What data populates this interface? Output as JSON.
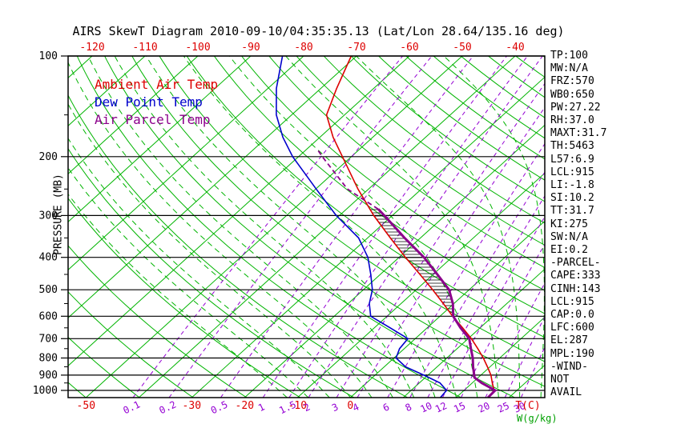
{
  "title": "AIRS SkewT Diagram 2010-09-10/04:35:35.13 (Lat/Lon 28.64/135.16 deg)",
  "colors": {
    "temp_axis": "#dd0000",
    "pressure_axis": "#000000",
    "mixing_axis": "#9400d3",
    "gkg_label": "#00a000",
    "title": "#000000"
  },
  "legend": [
    {
      "label": "Ambient Air Temp",
      "color": "#dd0000"
    },
    {
      "label": "Dew Point Temp",
      "color": "#0000cc"
    },
    {
      "label": "Air Parcel Temp",
      "color": "#8b008b"
    }
  ],
  "axes": {
    "pressure_label": "PRESSURE (MB)",
    "pressure_ticks": [
      100,
      200,
      300,
      400,
      500,
      600,
      700,
      800,
      900,
      1000
    ],
    "pressure_minor_ticks": [
      150,
      250,
      350,
      450,
      550,
      650,
      750,
      850,
      950
    ],
    "top_temp_ticks": [
      -120,
      -110,
      -100,
      -90,
      -80,
      -70,
      -60,
      -50,
      -40
    ],
    "bottom_temp_ticks": [
      -50,
      -30,
      -20,
      -10,
      0
    ],
    "temp_unit_label": "T(C)",
    "mixing_ratio_ticks": [
      0.1,
      0.2,
      0.5,
      1,
      1.5,
      2,
      3,
      4,
      6,
      8,
      10,
      12,
      15,
      20,
      25,
      30
    ],
    "mixing_unit_label": "W(g/kg)"
  },
  "stats_panel": [
    "TP:100",
    "MW:N/A",
    "FRZ:570",
    "WB0:650",
    "PW:27.22",
    "RH:37.0",
    "MAXT:31.7",
    "TH:5463",
    "L57:6.9",
    "LCL:915",
    "LI:-1.8",
    "SI:10.2",
    "TT:31.7",
    "KI:275",
    "SW:N/A",
    "EI:0.2",
    "-PARCEL-",
    "CAPE:333",
    "CINH:143",
    "LCL:915",
    "CAP:0.0",
    "LFC:600",
    "EL:287",
    "MPL:190",
    "-WIND-",
    "NOT",
    "AVAIL"
  ],
  "chart_data": {
    "type": "line",
    "title": "AIRS SkewT Diagram 2010-09-10/04:35:35.13 (Lat/Lon 28.64/135.16 deg)",
    "x_axis_label": "T(C)",
    "y_axis_label": "PRESSURE (MB)",
    "y_scale": "log",
    "ylim": [
      100,
      1050
    ],
    "skew": "45deg isotherms, log-pressure vertical axis",
    "series": [
      {
        "name": "Ambient Air Temp",
        "color": "#dd0000",
        "width": 1.6,
        "pressure": [
          1050,
          1000,
          950,
          900,
          850,
          800,
          750,
          700,
          650,
          600,
          550,
          500,
          450,
          400,
          350,
          300,
          250,
          200,
          175,
          150,
          125,
          100
        ],
        "temp_c": [
          26.0,
          25.7,
          23.8,
          21.9,
          19.5,
          16.9,
          13.9,
          10.6,
          6.7,
          2.4,
          -2.0,
          -6.9,
          -12.5,
          -18.8,
          -25.7,
          -33.5,
          -42.0,
          -51.7,
          -57.5,
          -63.4,
          -67.0,
          -71.0
        ]
      },
      {
        "name": "Dew Point Temp",
        "color": "#0000cc",
        "width": 1.6,
        "pressure": [
          1050,
          1000,
          950,
          900,
          850,
          800,
          750,
          700,
          650,
          600,
          550,
          500,
          450,
          400,
          350,
          300,
          250,
          200,
          175,
          150,
          125,
          100
        ],
        "temp_c": [
          17.0,
          16.7,
          13.9,
          9.2,
          4.0,
          0.4,
          -0.9,
          -1.4,
          -7.0,
          -13.1,
          -16.0,
          -18.3,
          -21.8,
          -25.9,
          -31.7,
          -40.6,
          -49.9,
          -61.1,
          -67.0,
          -72.9,
          -78.4,
          -84.0
        ]
      },
      {
        "name": "Air Parcel Temp",
        "color": "#8b008b",
        "width": 3,
        "dash_above_pressure": 287,
        "pressure": [
          1050,
          1000,
          950,
          915,
          850,
          800,
          750,
          700,
          650,
          600,
          550,
          500,
          450,
          400,
          350,
          300,
          287,
          250,
          200,
          190
        ],
        "temp_c": [
          26.0,
          25.9,
          21.8,
          19.3,
          16.8,
          14.9,
          12.6,
          10.2,
          6.3,
          2.5,
          -0.2,
          -3.8,
          -9.2,
          -15.3,
          -23.0,
          -31.5,
          -34.0,
          -44.0,
          -55.5,
          -58.0
        ]
      }
    ],
    "cape_hatch": {
      "from_pressure": 600,
      "to_pressure": 287
    },
    "background_lines": {
      "isotherm": {
        "color": "#00b400",
        "min_c": -130,
        "max_c": 40,
        "step_c": 10
      },
      "dry_adiabat": {
        "color": "#00b400",
        "min_k": 210,
        "max_k": 460,
        "step_k": 10
      },
      "moist_adiabat": {
        "color": "#00b400",
        "dash": [
          7,
          5
        ],
        "surface_temps_c": [
          -12,
          -8,
          -4,
          0,
          4,
          8,
          12,
          16,
          20,
          24,
          28,
          32,
          36
        ]
      },
      "mixing_ratio": {
        "color": "#9400d3",
        "dash": [
          5,
          4
        ]
      },
      "pressure_line_color": "#000000",
      "hatch_color": "#000000"
    }
  }
}
